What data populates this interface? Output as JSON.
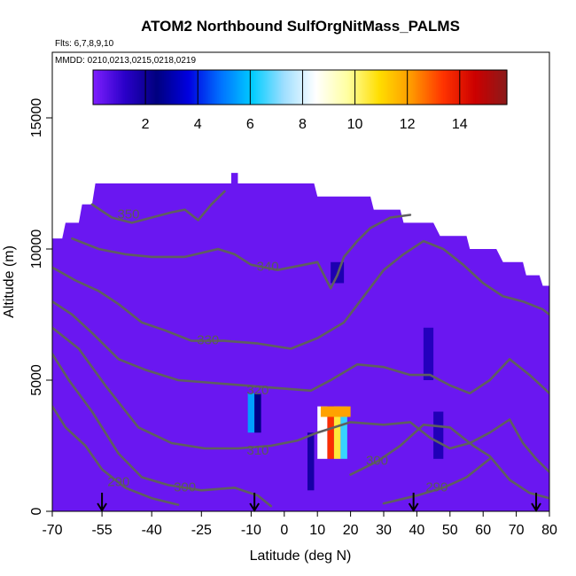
{
  "chart_data": {
    "type": "heatmap",
    "title": "ATOM2 Northbound SulfOrgNitMass_PALMS",
    "flights_label": "Flts: 6,7,8,9,10",
    "dates_label": "MMDD: 0210,0213,0215,0218,0219",
    "xlabel": "Latitude (deg N)",
    "ylabel": "Altitude (m)",
    "xlim": [
      -70,
      80
    ],
    "ylim": [
      0,
      17500
    ],
    "x_ticks": [
      -70,
      -55,
      -40,
      -25,
      -10,
      0,
      10,
      20,
      30,
      40,
      50,
      60,
      70,
      80
    ],
    "y_ticks": [
      0,
      5000,
      10000,
      15000
    ],
    "colorbar": {
      "range": [
        0,
        15.8
      ],
      "ticks": [
        2,
        4,
        6,
        8,
        10,
        12,
        14
      ],
      "colors": [
        "#7f1fff",
        "#2a00c8",
        "#00007f",
        "#0000e0",
        "#0070ff",
        "#00ccff",
        "#9fdfff",
        "#ffffff",
        "#ffffa0",
        "#ffdd00",
        "#ff9900",
        "#ff3300",
        "#cc0000",
        "#8b1a1a"
      ]
    },
    "background_value": 0.3,
    "coverage_top": [
      [
        -70,
        10400
      ],
      [
        -67,
        10400
      ],
      [
        -66,
        11000
      ],
      [
        -62,
        11000
      ],
      [
        -61,
        11700
      ],
      [
        -58,
        11700
      ],
      [
        -57,
        12500
      ],
      [
        -16,
        12500
      ],
      [
        -16,
        12900
      ],
      [
        -14,
        12900
      ],
      [
        -14,
        12500
      ],
      [
        9,
        12500
      ],
      [
        10,
        12000
      ],
      [
        26,
        12000
      ],
      [
        27,
        11500
      ],
      [
        35,
        11500
      ],
      [
        36,
        11000
      ],
      [
        45,
        11000
      ],
      [
        47,
        10500
      ],
      [
        55,
        10500
      ],
      [
        56,
        10000
      ],
      [
        64,
        10000
      ],
      [
        66,
        9500
      ],
      [
        72,
        9500
      ],
      [
        73,
        9000
      ],
      [
        77,
        9000
      ],
      [
        78,
        8600
      ],
      [
        80,
        8600
      ]
    ],
    "enhancements": [
      {
        "x": [
          -11,
          -9
        ],
        "y": [
          3000,
          4500
        ],
        "value": 5.5
      },
      {
        "x": [
          -9,
          -7
        ],
        "y": [
          3000,
          4500
        ],
        "value": 2.5
      },
      {
        "x": [
          10,
          13
        ],
        "y": [
          2000,
          4000
        ],
        "value": 8.5
      },
      {
        "x": [
          13,
          15
        ],
        "y": [
          2000,
          4000
        ],
        "value": 13.5
      },
      {
        "x": [
          15,
          17
        ],
        "y": [
          2000,
          4000
        ],
        "value": 10.5
      },
      {
        "x": [
          17,
          19
        ],
        "y": [
          2000,
          4000
        ],
        "value": 6.5
      },
      {
        "x": [
          11,
          20
        ],
        "y": [
          3600,
          4000
        ],
        "value": 12.0
      },
      {
        "x": [
          7,
          9
        ],
        "y": [
          800,
          3000
        ],
        "value": 1.8
      },
      {
        "x": [
          45,
          48
        ],
        "y": [
          2000,
          3800
        ],
        "value": 1.5
      },
      {
        "x": [
          42,
          45
        ],
        "y": [
          5000,
          7000
        ],
        "value": 1.4
      },
      {
        "x": [
          14,
          18
        ],
        "y": [
          8700,
          9500
        ],
        "value": 1.6
      }
    ],
    "contours": [
      {
        "level": 290,
        "label": "290",
        "label_xy": [
          -50,
          1100
        ],
        "points": [
          [
            -70,
            4000
          ],
          [
            -66,
            3200
          ],
          [
            -60,
            2500
          ],
          [
            -55,
            1600
          ],
          [
            -48,
            900
          ],
          [
            -40,
            500
          ],
          [
            -32,
            250
          ]
        ]
      },
      {
        "level": 290,
        "label": "290",
        "label_xy": [
          46,
          900
        ],
        "points": [
          [
            30,
            300
          ],
          [
            40,
            600
          ],
          [
            48,
            900
          ],
          [
            55,
            1300
          ],
          [
            62,
            2000
          ]
        ]
      },
      {
        "level": 300,
        "label": "300",
        "label_xy": [
          -30,
          900
        ],
        "points": [
          [
            -70,
            6000
          ],
          [
            -65,
            5000
          ],
          [
            -58,
            3800
          ],
          [
            -50,
            2200
          ],
          [
            -43,
            1300
          ],
          [
            -35,
            1000
          ],
          [
            -25,
            800
          ],
          [
            -15,
            900
          ],
          [
            -8,
            600
          ],
          [
            -4,
            200
          ]
        ]
      },
      {
        "level": 300,
        "label": "300",
        "label_xy": [
          28,
          1900
        ],
        "points": [
          [
            20,
            1400
          ],
          [
            28,
            1900
          ],
          [
            35,
            2500
          ],
          [
            42,
            3300
          ],
          [
            50,
            3200
          ],
          [
            57,
            2500
          ],
          [
            62,
            2100
          ],
          [
            68,
            1200
          ],
          [
            74,
            700
          ],
          [
            80,
            500
          ]
        ]
      },
      {
        "level": 310,
        "label": "310",
        "label_xy": [
          -8,
          2300
        ],
        "points": [
          [
            -70,
            7000
          ],
          [
            -62,
            6200
          ],
          [
            -54,
            4800
          ],
          [
            -44,
            3200
          ],
          [
            -34,
            2600
          ],
          [
            -24,
            2400
          ],
          [
            -14,
            2400
          ],
          [
            -4,
            2500
          ],
          [
            4,
            2700
          ],
          [
            10,
            3000
          ],
          [
            20,
            3400
          ],
          [
            30,
            3300
          ],
          [
            38,
            3400
          ],
          [
            44,
            2800
          ],
          [
            50,
            2400
          ],
          [
            56,
            2600
          ],
          [
            62,
            3000
          ],
          [
            68,
            3500
          ],
          [
            72,
            2600
          ],
          [
            76,
            2000
          ],
          [
            80,
            1500
          ]
        ]
      },
      {
        "level": 320,
        "label": "320",
        "label_xy": [
          -8,
          4600
        ],
        "points": [
          [
            -70,
            8000
          ],
          [
            -64,
            7500
          ],
          [
            -58,
            6800
          ],
          [
            -50,
            5800
          ],
          [
            -42,
            5400
          ],
          [
            -32,
            5000
          ],
          [
            -22,
            4900
          ],
          [
            -12,
            4800
          ],
          [
            -2,
            4700
          ],
          [
            8,
            4600
          ],
          [
            14,
            5000
          ],
          [
            22,
            5600
          ],
          [
            30,
            5500
          ],
          [
            38,
            5200
          ],
          [
            44,
            5200
          ],
          [
            50,
            4800
          ],
          [
            56,
            4500
          ],
          [
            62,
            5000
          ],
          [
            68,
            5800
          ],
          [
            74,
            5200
          ],
          [
            80,
            4500
          ]
        ]
      },
      {
        "level": 330,
        "label": "330",
        "label_xy": [
          -23,
          6500
        ],
        "points": [
          [
            -70,
            9300
          ],
          [
            -63,
            8800
          ],
          [
            -56,
            8400
          ],
          [
            -50,
            7900
          ],
          [
            -43,
            7200
          ],
          [
            -36,
            6900
          ],
          [
            -28,
            6500
          ],
          [
            -18,
            6500
          ],
          [
            -8,
            6400
          ],
          [
            2,
            6200
          ],
          [
            10,
            6600
          ],
          [
            18,
            7200
          ],
          [
            24,
            8200
          ],
          [
            30,
            9200
          ],
          [
            36,
            9800
          ],
          [
            42,
            10300
          ],
          [
            48,
            10000
          ],
          [
            54,
            9400
          ],
          [
            60,
            8700
          ],
          [
            66,
            8200
          ],
          [
            72,
            8000
          ],
          [
            78,
            7700
          ],
          [
            80,
            7500
          ]
        ]
      },
      {
        "level": 340,
        "label": "340",
        "label_xy": [
          -5,
          9300
        ],
        "points": [
          [
            -64,
            10400
          ],
          [
            -56,
            10000
          ],
          [
            -48,
            9800
          ],
          [
            -40,
            9700
          ],
          [
            -30,
            9700
          ],
          [
            -20,
            10000
          ],
          [
            -15,
            9800
          ],
          [
            -10,
            9400
          ],
          [
            -2,
            9200
          ],
          [
            6,
            9400
          ],
          [
            10,
            9500
          ],
          [
            12,
            9000
          ],
          [
            14,
            8500
          ],
          [
            16,
            9000
          ],
          [
            18,
            9700
          ],
          [
            22,
            10300
          ],
          [
            26,
            10800
          ],
          [
            32,
            11200
          ],
          [
            38,
            11300
          ]
        ]
      },
      {
        "level": 350,
        "label": "350",
        "label_xy": [
          -47,
          11300
        ],
        "points": [
          [
            -58,
            11700
          ],
          [
            -52,
            11200
          ],
          [
            -46,
            11000
          ],
          [
            -40,
            11200
          ],
          [
            -34,
            11400
          ],
          [
            -30,
            11500
          ],
          [
            -26,
            11100
          ],
          [
            -22,
            11700
          ],
          [
            -18,
            12200
          ]
        ]
      }
    ],
    "arrows_lat": [
      -55,
      -9,
      39,
      76
    ]
  }
}
